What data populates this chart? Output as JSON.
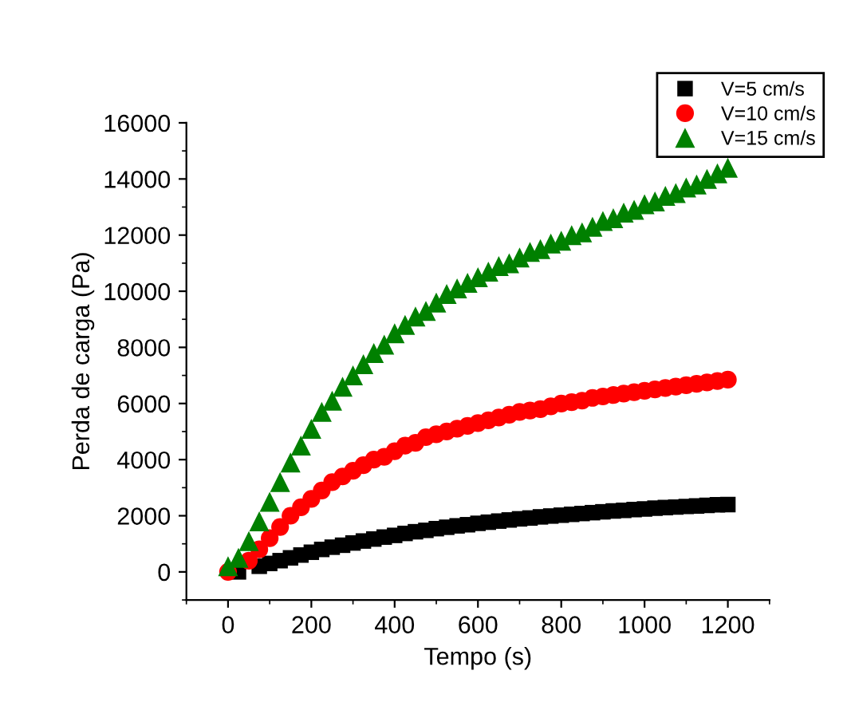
{
  "chart_data": {
    "type": "scatter",
    "xlabel": "Tempo (s)",
    "ylabel": "Perda de carga (Pa)",
    "x": [
      0,
      25,
      50,
      75,
      100,
      125,
      150,
      175,
      200,
      225,
      250,
      275,
      300,
      325,
      350,
      375,
      400,
      425,
      450,
      475,
      500,
      525,
      550,
      575,
      600,
      625,
      650,
      675,
      700,
      725,
      750,
      775,
      800,
      825,
      850,
      875,
      900,
      925,
      950,
      975,
      1000,
      1025,
      1050,
      1075,
      1100,
      1125,
      1150,
      1175,
      1200
    ],
    "series": [
      {
        "name": "V=5 cm/s",
        "color": "#000000",
        "marker": "square",
        "values": [
          null,
          0,
          null,
          200,
          300,
          400,
          500,
          600,
          700,
          800,
          880,
          950,
          1030,
          1100,
          1170,
          1240,
          1300,
          1370,
          1430,
          1480,
          1540,
          1590,
          1640,
          1680,
          1730,
          1770,
          1810,
          1850,
          1890,
          1920,
          1960,
          1990,
          2020,
          2050,
          2080,
          2110,
          2140,
          2170,
          2190,
          2220,
          2240,
          2270,
          2290,
          2310,
          2330,
          2350,
          2370,
          2390,
          2400
        ]
      },
      {
        "name": "V=10 cm/s",
        "color": "#ff0000",
        "marker": "circle",
        "values": [
          0,
          null,
          400,
          800,
          1200,
          1600,
          2000,
          2300,
          2600,
          2900,
          3200,
          3400,
          3600,
          3800,
          4000,
          4100,
          4300,
          4500,
          4600,
          4800,
          4900,
          5000,
          5100,
          5200,
          5300,
          5400,
          5500,
          5600,
          5700,
          5750,
          5800,
          5900,
          6000,
          6050,
          6100,
          6200,
          6250,
          6300,
          6350,
          6400,
          6450,
          6500,
          6550,
          6600,
          6650,
          6700,
          6750,
          6800,
          6850
        ]
      },
      {
        "name": "V=15 cm/s",
        "color": "#008000",
        "marker": "triangle",
        "values": [
          200,
          500,
          1100,
          1800,
          2500,
          3200,
          3900,
          4500,
          5100,
          5700,
          6100,
          6600,
          7000,
          7400,
          7800,
          8100,
          8500,
          8800,
          9100,
          9300,
          9600,
          9900,
          10100,
          10300,
          10500,
          10700,
          10900,
          11000,
          11200,
          11400,
          11500,
          11700,
          11800,
          12000,
          12100,
          12300,
          12500,
          12600,
          12800,
          12900,
          13100,
          13200,
          13400,
          13500,
          13700,
          13800,
          14000,
          14200,
          14400
        ]
      }
    ],
    "xlim": [
      -100,
      1300
    ],
    "xticks": [
      0,
      200,
      400,
      600,
      800,
      1000,
      1200
    ],
    "ylim": [
      -1000,
      16000
    ],
    "yticks": [
      0,
      2000,
      4000,
      6000,
      8000,
      10000,
      12000,
      14000,
      16000
    ],
    "grid": false,
    "legend": "top right"
  }
}
